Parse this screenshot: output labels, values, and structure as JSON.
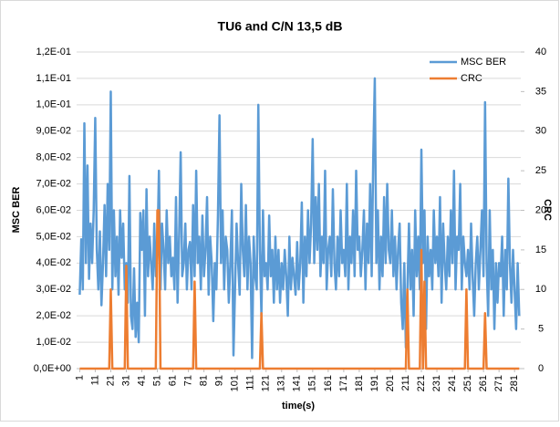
{
  "chart_data": {
    "type": "line",
    "title": "TU6 and C/N 13,5 dB",
    "x_label": "time(s)",
    "y_label": "MSC BER",
    "y2_label": "CRC",
    "grid": true,
    "legend": "upper right",
    "xlim": [
      -1,
      285
    ],
    "xticks": [
      1,
      11,
      21,
      31,
      41,
      51,
      61,
      71,
      81,
      91,
      101,
      111,
      121,
      131,
      141,
      151,
      161,
      171,
      181,
      191,
      201,
      211,
      221,
      231,
      241,
      251,
      261,
      271,
      281
    ],
    "ylim": [
      0,
      0.12
    ],
    "yticks": [
      {
        "value": 0,
        "label": "0,0E+00"
      },
      {
        "value": 0.01,
        "label": "1,0E-02"
      },
      {
        "value": 0.02,
        "label": "2,0E-02"
      },
      {
        "value": 0.03,
        "label": "3,0E-02"
      },
      {
        "value": 0.04,
        "label": "4,0E-02"
      },
      {
        "value": 0.05,
        "label": "5,0E-02"
      },
      {
        "value": 0.06,
        "label": "6,0E-02"
      },
      {
        "value": 0.07,
        "label": "7,0E-02"
      },
      {
        "value": 0.08,
        "label": "8,0E-02"
      },
      {
        "value": 0.09,
        "label": "9,0E-02"
      },
      {
        "value": 0.1,
        "label": "1,0E-01"
      },
      {
        "value": 0.11,
        "label": "1,1E-01"
      },
      {
        "value": 0.12,
        "label": "1,2E-01"
      }
    ],
    "y2lim": [
      0,
      40
    ],
    "y2ticks": [
      0,
      5,
      10,
      15,
      20,
      25,
      30,
      35,
      40
    ],
    "x": [
      1,
      2,
      3,
      4,
      5,
      6,
      7,
      8,
      9,
      10,
      11,
      12,
      13,
      14,
      15,
      16,
      17,
      18,
      19,
      20,
      21,
      22,
      23,
      24,
      25,
      26,
      27,
      28,
      29,
      30,
      31,
      32,
      33,
      34,
      35,
      36,
      37,
      38,
      39,
      40,
      41,
      42,
      43,
      44,
      45,
      46,
      47,
      48,
      49,
      50,
      51,
      52,
      53,
      54,
      55,
      56,
      57,
      58,
      59,
      60,
      61,
      62,
      63,
      64,
      65,
      66,
      67,
      68,
      69,
      70,
      71,
      72,
      73,
      74,
      75,
      76,
      77,
      78,
      79,
      80,
      81,
      82,
      83,
      84,
      85,
      86,
      87,
      88,
      89,
      90,
      91,
      92,
      93,
      94,
      95,
      96,
      97,
      98,
      99,
      100,
      101,
      102,
      103,
      104,
      105,
      106,
      107,
      108,
      109,
      110,
      111,
      112,
      113,
      114,
      115,
      116,
      117,
      118,
      119,
      120,
      121,
      122,
      123,
      124,
      125,
      126,
      127,
      128,
      129,
      130,
      131,
      132,
      133,
      134,
      135,
      136,
      137,
      138,
      139,
      140,
      141,
      142,
      143,
      144,
      145,
      146,
      147,
      148,
      149,
      150,
      151,
      152,
      153,
      154,
      155,
      156,
      157,
      158,
      159,
      160,
      161,
      162,
      163,
      164,
      165,
      166,
      167,
      168,
      169,
      170,
      171,
      172,
      173,
      174,
      175,
      176,
      177,
      178,
      179,
      180,
      181,
      182,
      183,
      184,
      185,
      186,
      187,
      188,
      189,
      190,
      191,
      192,
      193,
      194,
      195,
      196,
      197,
      198,
      199,
      200,
      201,
      202,
      203,
      204,
      205,
      206,
      207,
      208,
      209,
      210,
      211,
      212,
      213,
      214,
      215,
      216,
      217,
      218,
      219,
      220,
      221,
      222,
      223,
      224,
      225,
      226,
      227,
      228,
      229,
      230,
      231,
      232,
      233,
      234,
      235,
      236,
      237,
      238,
      239,
      240,
      241,
      242,
      243,
      244,
      245,
      246,
      247,
      248,
      249,
      250,
      251,
      252,
      253,
      254,
      255,
      256,
      257,
      258,
      259,
      260,
      261,
      262,
      263,
      264,
      265,
      266,
      267,
      268,
      269,
      270,
      271,
      272,
      273,
      274,
      275,
      276,
      277,
      278,
      279,
      280,
      281,
      282,
      283,
      284
    ],
    "series": [
      {
        "name": "MSC BER",
        "color": "#5b9bd5",
        "values": [
          0.028,
          0.049,
          0.03,
          0.093,
          0.04,
          0.077,
          0.034,
          0.055,
          0.04,
          0.06,
          0.095,
          0.045,
          0.03,
          0.052,
          0.024,
          0.04,
          0.062,
          0.035,
          0.07,
          0.045,
          0.105,
          0.03,
          0.06,
          0.035,
          0.05,
          0.028,
          0.06,
          0.042,
          0.055,
          0.03,
          0.04,
          0.025,
          0.073,
          0.02,
          0.015,
          0.038,
          0.012,
          0.025,
          0.01,
          0.059,
          0.045,
          0.06,
          0.02,
          0.068,
          0.035,
          0.05,
          0.04,
          0.03,
          0.055,
          0.035,
          0.045,
          0.075,
          0.03,
          0.055,
          0.045,
          0.03,
          0.06,
          0.04,
          0.05,
          0.035,
          0.042,
          0.03,
          0.065,
          0.025,
          0.05,
          0.082,
          0.035,
          0.04,
          0.055,
          0.03,
          0.045,
          0.048,
          0.03,
          0.062,
          0.035,
          0.075,
          0.04,
          0.05,
          0.03,
          0.058,
          0.035,
          0.045,
          0.065,
          0.028,
          0.05,
          0.04,
          0.018,
          0.04,
          0.03,
          0.058,
          0.096,
          0.04,
          0.06,
          0.03,
          0.05,
          0.045,
          0.025,
          0.04,
          0.06,
          0.005,
          0.03,
          0.055,
          0.04,
          0.028,
          0.07,
          0.045,
          0.035,
          0.062,
          0.03,
          0.05,
          0.04,
          0.004,
          0.05,
          0.035,
          0.03,
          0.1,
          0.045,
          0.02,
          0.06,
          0.035,
          0.04,
          0.03,
          0.058,
          0.035,
          0.045,
          0.025,
          0.05,
          0.03,
          0.045,
          0.025,
          0.04,
          0.03,
          0.045,
          0.035,
          0.02,
          0.05,
          0.03,
          0.042,
          0.035,
          0.028,
          0.048,
          0.03,
          0.04,
          0.063,
          0.025,
          0.05,
          0.035,
          0.06,
          0.04,
          0.055,
          0.087,
          0.04,
          0.065,
          0.045,
          0.07,
          0.035,
          0.05,
          0.04,
          0.075,
          0.03,
          0.045,
          0.05,
          0.035,
          0.068,
          0.04,
          0.03,
          0.05,
          0.035,
          0.06,
          0.04,
          0.045,
          0.035,
          0.07,
          0.03,
          0.05,
          0.04,
          0.06,
          0.035,
          0.075,
          0.045,
          0.05,
          0.035,
          0.045,
          0.06,
          0.03,
          0.055,
          0.04,
          0.07,
          0.035,
          0.08,
          0.11,
          0.04,
          0.06,
          0.03,
          0.05,
          0.035,
          0.065,
          0.04,
          0.07,
          0.045,
          0.04,
          0.06,
          0.035,
          0.05,
          0.03,
          0.045,
          0.055,
          0.025,
          0.015,
          0.04,
          0.008,
          0.03,
          0.055,
          0.03,
          0.045,
          0.02,
          0.06,
          0.035,
          0.05,
          0.03,
          0.083,
          0.04,
          0.06,
          0.015,
          0.05,
          0.035,
          0.045,
          0.03,
          0.06,
          0.04,
          0.05,
          0.035,
          0.065,
          0.025,
          0.055,
          0.04,
          0.03,
          0.05,
          0.035,
          0.06,
          0.04,
          0.075,
          0.03,
          0.05,
          0.045,
          0.07,
          0.03,
          0.05,
          0.04,
          0.035,
          0.045,
          0.03,
          0.055,
          0.035,
          0.02,
          0.04,
          0.05,
          0.03,
          0.045,
          0.06,
          0.035,
          0.101,
          0.04,
          0.02,
          0.06,
          0.03,
          0.045,
          0.015,
          0.04,
          0.025,
          0.04,
          0.035,
          0.05,
          0.02,
          0.045,
          0.03,
          0.072,
          0.04,
          0.025,
          0.045,
          0.03,
          0.015,
          0.04,
          0.02
        ]
      },
      {
        "name": "CRC",
        "color": "#ed7d31",
        "axis": "y2",
        "values": [
          0,
          0,
          0,
          0,
          0,
          0,
          0,
          0,
          0,
          0,
          0,
          0,
          0,
          0,
          0,
          0,
          0,
          0,
          0,
          0,
          10,
          0,
          0,
          0,
          0,
          0,
          0,
          0,
          0,
          0,
          13,
          0,
          0,
          0,
          0,
          0,
          0,
          0,
          0,
          0,
          0,
          0,
          0,
          0,
          0,
          0,
          0,
          0,
          0,
          0,
          20,
          20,
          0,
          0,
          0,
          0,
          0,
          0,
          0,
          0,
          0,
          0,
          0,
          0,
          0,
          0,
          0,
          0,
          0,
          0,
          0,
          0,
          0,
          0,
          11,
          0,
          0,
          0,
          0,
          0,
          0,
          0,
          0,
          0,
          0,
          0,
          0,
          0,
          0,
          0,
          0,
          0,
          0,
          0,
          0,
          0,
          0,
          0,
          0,
          0,
          0,
          0,
          0,
          0,
          0,
          0,
          0,
          0,
          0,
          0,
          0,
          0,
          0,
          0,
          0,
          0,
          0,
          7,
          0,
          0,
          0,
          0,
          0,
          0,
          0,
          0,
          0,
          0,
          0,
          0,
          0,
          0,
          0,
          0,
          0,
          0,
          0,
          0,
          0,
          0,
          0,
          0,
          0,
          0,
          0,
          0,
          0,
          0,
          0,
          0,
          0,
          0,
          0,
          0,
          0,
          0,
          0,
          0,
          0,
          0,
          0,
          0,
          0,
          0,
          0,
          0,
          0,
          0,
          0,
          0,
          0,
          0,
          0,
          0,
          0,
          0,
          0,
          0,
          0,
          0,
          0,
          0,
          0,
          0,
          0,
          0,
          0,
          0,
          0,
          0,
          0,
          0,
          0,
          0,
          0,
          0,
          0,
          0,
          0,
          0,
          0,
          0,
          0,
          0,
          0,
          0,
          0,
          0,
          0,
          0,
          0,
          10,
          0,
          0,
          0,
          0,
          0,
          0,
          0,
          0,
          15,
          0,
          11,
          0,
          0,
          0,
          0,
          0,
          0,
          0,
          0,
          0,
          0,
          0,
          0,
          0,
          0,
          0,
          0,
          0,
          0,
          0,
          0,
          0,
          0,
          0,
          0,
          0,
          0,
          10,
          0,
          0,
          0,
          0,
          0,
          0,
          0,
          0,
          0,
          0,
          0,
          7,
          0,
          0,
          0,
          0,
          0,
          0,
          0,
          0,
          0,
          0,
          0,
          0,
          0,
          0,
          0,
          0,
          0,
          0,
          0,
          0,
          0,
          0
        ]
      }
    ]
  }
}
